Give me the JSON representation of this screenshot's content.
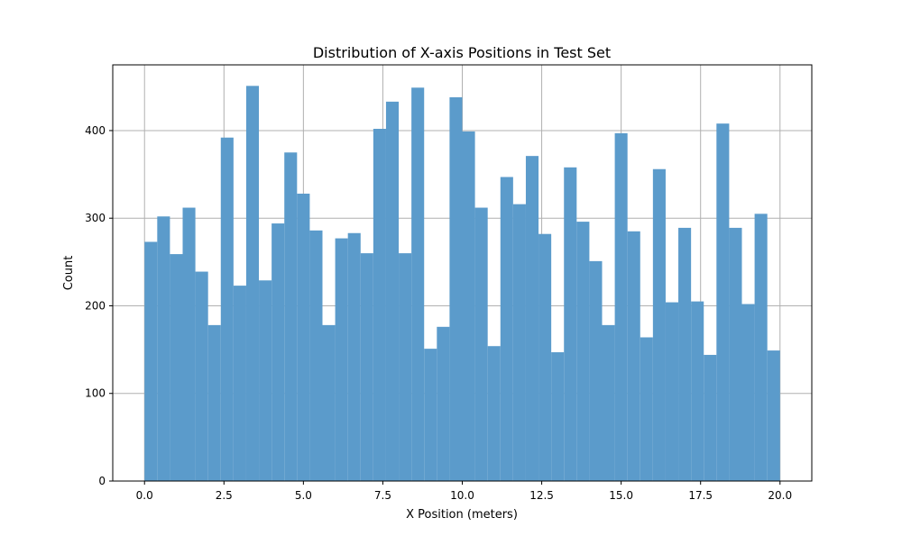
{
  "chart_data": {
    "type": "bar",
    "title": "Distribution of X-axis Positions in Test Set",
    "xlabel": "X Position (meters)",
    "ylabel": "Count",
    "xlim": [
      -1.0,
      21.0
    ],
    "ylim": [
      0,
      475
    ],
    "grid": true,
    "bar_color": "#5b9bcb",
    "xticks": [
      0.0,
      2.5,
      5.0,
      7.5,
      10.0,
      12.5,
      15.0,
      17.5,
      20.0
    ],
    "xtick_labels": [
      "0.0",
      "2.5",
      "5.0",
      "7.5",
      "10.0",
      "12.5",
      "15.0",
      "17.5",
      "20.0"
    ],
    "yticks": [
      0,
      100,
      200,
      300,
      400
    ],
    "ytick_labels": [
      "0",
      "100",
      "200",
      "300",
      "400"
    ],
    "bin_edges": [
      0.0,
      0.4,
      0.8,
      1.2,
      1.6,
      2.0,
      2.4,
      2.8,
      3.2,
      3.6,
      4.0,
      4.4,
      4.8,
      5.2,
      5.6,
      6.0,
      6.4,
      6.8,
      7.2,
      7.6,
      8.0,
      8.4,
      8.8,
      9.2,
      9.6,
      10.0,
      10.4,
      10.8,
      11.2,
      11.6,
      12.0,
      12.4,
      12.8,
      13.2,
      13.6,
      14.0,
      14.4,
      14.8,
      15.2,
      15.6,
      16.0,
      16.4,
      16.8,
      17.2,
      17.6,
      18.0,
      18.4,
      18.8,
      19.2,
      19.6,
      20.0
    ],
    "values": [
      273,
      302,
      259,
      312,
      239,
      178,
      392,
      223,
      451,
      229,
      294,
      375,
      328,
      286,
      178,
      277,
      283,
      260,
      402,
      433,
      260,
      449,
      151,
      176,
      438,
      399,
      312,
      154,
      347,
      316,
      371,
      282,
      147,
      358,
      296,
      251,
      178,
      397,
      285,
      164,
      356,
      204,
      289,
      205,
      144,
      408,
      289,
      202,
      305,
      149
    ]
  }
}
